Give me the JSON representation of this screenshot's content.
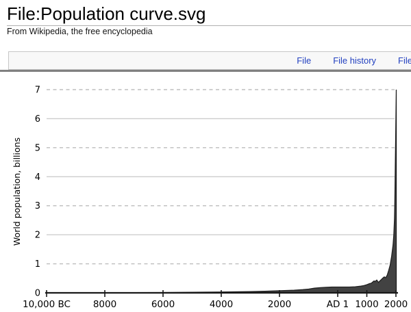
{
  "page": {
    "title": "File:Population curve.svg",
    "subtitle": "From Wikipedia, the free encyclopedia"
  },
  "tabs": [
    {
      "label": "File"
    },
    {
      "label": "File history"
    },
    {
      "label": "File"
    }
  ],
  "colors": {
    "link": "#2341c0",
    "curve_fill": "#424242",
    "curve_stroke": "#202020",
    "axis": "#191919",
    "grid_dashed": "#bdbdbd",
    "grid_solid": "#cdcdcd"
  },
  "chart_data": {
    "type": "area",
    "title": "",
    "xlabel": "",
    "ylabel": "World population, billions",
    "xlim": [
      -10000,
      2011
    ],
    "ylim": [
      0,
      7
    ],
    "grid": "horizontal, odd values dashed, even values solid",
    "legend": "none",
    "x_ticks": [
      {
        "year": -10000,
        "label": "10,000 BC"
      },
      {
        "year": -8000,
        "label": "8000"
      },
      {
        "year": -6000,
        "label": "6000"
      },
      {
        "year": -4000,
        "label": "4000"
      },
      {
        "year": -2000,
        "label": "2000"
      },
      {
        "year": 1,
        "label": "AD 1"
      },
      {
        "year": 1000,
        "label": "1000"
      },
      {
        "year": 2000,
        "label": "2000"
      }
    ],
    "y_ticks": [
      0,
      1,
      2,
      3,
      4,
      5,
      6,
      7
    ],
    "series": [
      {
        "name": "World population (billions)",
        "points": [
          [
            -10000,
            0.002
          ],
          [
            -8000,
            0.005
          ],
          [
            -6000,
            0.011
          ],
          [
            -5000,
            0.018
          ],
          [
            -4000,
            0.028
          ],
          [
            -3000,
            0.045
          ],
          [
            -2500,
            0.055
          ],
          [
            -2000,
            0.072
          ],
          [
            -1500,
            0.09
          ],
          [
            -1200,
            0.11
          ],
          [
            -1000,
            0.13
          ],
          [
            -800,
            0.16
          ],
          [
            -600,
            0.18
          ],
          [
            -400,
            0.19
          ],
          [
            -200,
            0.2
          ],
          [
            1,
            0.2
          ],
          [
            200,
            0.2
          ],
          [
            400,
            0.2
          ],
          [
            600,
            0.21
          ],
          [
            800,
            0.23
          ],
          [
            900,
            0.25
          ],
          [
            1000,
            0.28
          ],
          [
            1100,
            0.32
          ],
          [
            1150,
            0.33
          ],
          [
            1200,
            0.37
          ],
          [
            1250,
            0.41
          ],
          [
            1280,
            0.39
          ],
          [
            1340,
            0.44
          ],
          [
            1400,
            0.36
          ],
          [
            1450,
            0.41
          ],
          [
            1500,
            0.46
          ],
          [
            1550,
            0.51
          ],
          [
            1600,
            0.55
          ],
          [
            1650,
            0.52
          ],
          [
            1700,
            0.61
          ],
          [
            1750,
            0.77
          ],
          [
            1800,
            0.95
          ],
          [
            1850,
            1.24
          ],
          [
            1900,
            1.65
          ],
          [
            1927,
            2.0
          ],
          [
            1950,
            2.55
          ],
          [
            1960,
            3.02
          ],
          [
            1970,
            3.7
          ],
          [
            1980,
            4.45
          ],
          [
            1990,
            5.3
          ],
          [
            2000,
            6.08
          ],
          [
            2011,
            7.0
          ]
        ]
      }
    ]
  }
}
